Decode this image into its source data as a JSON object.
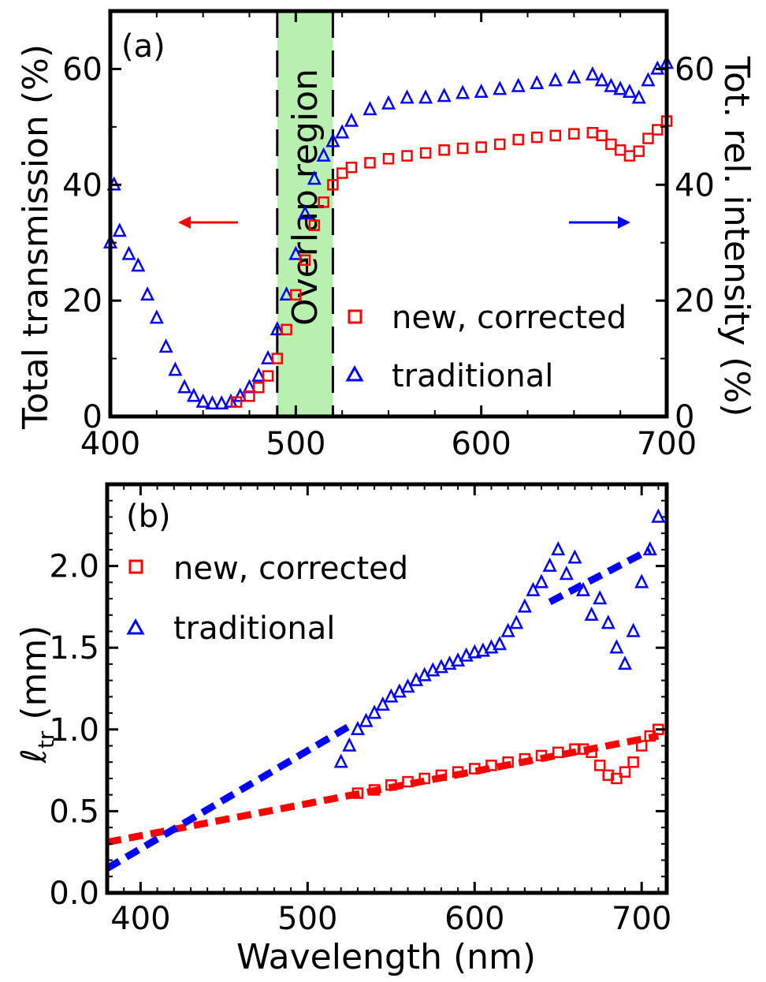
{
  "colors": {
    "new": "#ff0000",
    "traditional": "#0000ff",
    "overlap": "#b8f0b0"
  },
  "legend": {
    "new": "new, corrected",
    "traditional": "traditional"
  },
  "panel_a": {
    "label": "(a)",
    "ylabel_left": "Total transmission (%)",
    "ylabel_right": "Tot. rel. intensity (%)",
    "overlap_label": "Overlap region",
    "xticks": [
      "400",
      "500",
      "600",
      "700"
    ],
    "yticks_left": [
      "0",
      "20",
      "40",
      "60"
    ],
    "yticks_right": [
      "0",
      "20",
      "40",
      "60"
    ]
  },
  "panel_b": {
    "label": "(b)",
    "ylabel_main": "ℓ",
    "ylabel_sub": "tr",
    "ylabel_unit": " (mm)",
    "xlabel": "Wavelength (nm)",
    "xticks": [
      "400",
      "500",
      "600",
      "700"
    ],
    "yticks": [
      "0.0",
      "0.5",
      "1.0",
      "1.5",
      "2.0"
    ]
  },
  "chart_data": [
    {
      "type": "scatter",
      "panel": "a",
      "xlim": [
        400,
        700
      ],
      "ylim_left": [
        0,
        70
      ],
      "ylim_right": [
        0,
        70
      ],
      "overlap_region": [
        490,
        520
      ],
      "arrows": [
        {
          "direction": "left",
          "axis": "left",
          "color": "red"
        },
        {
          "direction": "right",
          "axis": "right",
          "color": "blue"
        }
      ],
      "series": [
        {
          "name": "new, corrected",
          "marker": "square",
          "axis": "left",
          "x": [
            468,
            475,
            480,
            485,
            490,
            495,
            500,
            505,
            510,
            515,
            520,
            525,
            530,
            540,
            550,
            560,
            570,
            580,
            590,
            600,
            610,
            620,
            630,
            640,
            650,
            660,
            665,
            670,
            675,
            680,
            685,
            690,
            695,
            700
          ],
          "y": [
            2.5,
            3.5,
            5,
            7,
            10,
            15,
            21,
            27,
            33,
            37,
            40,
            42,
            43,
            43.8,
            44.5,
            45,
            45.5,
            46,
            46.3,
            46.5,
            47,
            47.8,
            48.2,
            48.5,
            48.8,
            49,
            48.5,
            47,
            46,
            45,
            45.8,
            48,
            49.5,
            51
          ]
        },
        {
          "name": "traditional",
          "marker": "triangle",
          "axis": "right",
          "x": [
            400,
            402,
            405,
            410,
            415,
            420,
            425,
            430,
            435,
            440,
            445,
            450,
            455,
            460,
            465,
            470,
            475,
            480,
            485,
            490,
            495,
            500,
            505,
            510,
            515,
            520,
            525,
            530,
            540,
            550,
            560,
            570,
            580,
            590,
            600,
            610,
            620,
            630,
            640,
            650,
            660,
            665,
            670,
            675,
            680,
            685,
            690,
            695,
            700
          ],
          "y": [
            30,
            40,
            32,
            28,
            26,
            21,
            17,
            12,
            8,
            5,
            3.5,
            2.5,
            2.2,
            2.2,
            2.5,
            3.5,
            5,
            7,
            10,
            15,
            21,
            28,
            35,
            41,
            45,
            47.5,
            49,
            51,
            53,
            54,
            55,
            55,
            55.3,
            55.8,
            56,
            56.5,
            57,
            57.5,
            58,
            58.5,
            59,
            58,
            57,
            56.5,
            56,
            55,
            58,
            60,
            61
          ]
        }
      ]
    },
    {
      "type": "scatter",
      "panel": "b",
      "xlabel": "Wavelength (nm)",
      "ylabel": "ℓtr (mm)",
      "xlim": [
        380,
        715
      ],
      "ylim": [
        0,
        2.5
      ],
      "series": [
        {
          "name": "new, corrected",
          "marker": "square",
          "x": [
            530,
            540,
            550,
            560,
            570,
            580,
            590,
            600,
            610,
            620,
            630,
            640,
            650,
            660,
            665,
            670,
            675,
            680,
            685,
            690,
            695,
            700,
            705,
            710
          ],
          "y": [
            0.61,
            0.63,
            0.66,
            0.68,
            0.7,
            0.72,
            0.74,
            0.76,
            0.78,
            0.8,
            0.82,
            0.84,
            0.86,
            0.88,
            0.88,
            0.86,
            0.78,
            0.72,
            0.7,
            0.74,
            0.8,
            0.9,
            0.96,
            1.0
          ]
        },
        {
          "name": "traditional",
          "marker": "triangle",
          "x": [
            520,
            525,
            530,
            535,
            540,
            545,
            550,
            555,
            560,
            565,
            570,
            575,
            580,
            585,
            590,
            595,
            600,
            605,
            610,
            615,
            620,
            625,
            630,
            635,
            640,
            645,
            650,
            655,
            660,
            665,
            670,
            675,
            680,
            685,
            690,
            695,
            700,
            705,
            710
          ],
          "y": [
            0.8,
            0.9,
            1.0,
            1.05,
            1.1,
            1.15,
            1.2,
            1.23,
            1.26,
            1.3,
            1.33,
            1.36,
            1.38,
            1.4,
            1.42,
            1.45,
            1.47,
            1.48,
            1.5,
            1.52,
            1.6,
            1.65,
            1.75,
            1.85,
            1.9,
            2.0,
            2.1,
            1.95,
            2.05,
            1.85,
            1.7,
            1.8,
            1.65,
            1.5,
            1.4,
            1.6,
            1.9,
            2.1,
            2.3
          ]
        }
      ],
      "fits": [
        {
          "name": "new, corrected",
          "style": "dashed",
          "x": [
            380,
            710
          ],
          "y": [
            0.31,
            0.96
          ]
        },
        {
          "name": "traditional",
          "style": "dashed",
          "x": [
            380,
            525
          ],
          "y": [
            0.15,
            1.02
          ]
        },
        {
          "name": "traditional",
          "style": "dashed",
          "x": [
            645,
            705
          ],
          "y": [
            1.78,
            2.1
          ]
        }
      ]
    }
  ]
}
